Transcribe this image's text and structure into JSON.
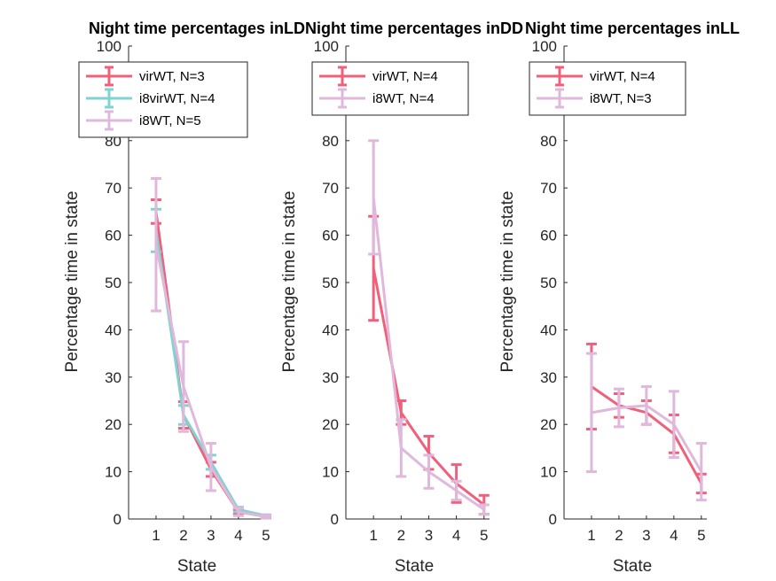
{
  "chart_data": [
    {
      "type": "line",
      "title": "Night time percentages inLD",
      "xlabel": "State",
      "ylabel": "Percentage time in state",
      "x": [
        1,
        2,
        3,
        4,
        5
      ],
      "xlim": [
        0,
        5.2
      ],
      "ylim": [
        0,
        100
      ],
      "yticks": [
        0,
        10,
        20,
        30,
        40,
        50,
        60,
        70,
        80,
        90,
        100
      ],
      "legend_position": "top",
      "series": [
        {
          "name": "virWT, N=3",
          "color": "#f0607a",
          "values": [
            65,
            22,
            10.5,
            1.5,
            0.5
          ],
          "err": [
            2.5,
            2.8,
            1.5,
            0.5,
            0.3
          ]
        },
        {
          "name": "i8virWT, N=4",
          "color": "#7fd3d1",
          "values": [
            61,
            22,
            12,
            2,
            0.7
          ],
          "err": [
            4.5,
            2,
            1.5,
            0.5,
            0.2
          ]
        },
        {
          "name": "i8WT, N=5",
          "color": "#dfb8db",
          "values": [
            58,
            28,
            11,
            1.5,
            0.5
          ],
          "err": [
            14,
            9.5,
            5,
            0.8,
            0.3
          ]
        }
      ]
    },
    {
      "type": "line",
      "title": "Night time percentages inDD",
      "xlabel": "State",
      "ylabel": "Percentage time in state",
      "x": [
        1,
        2,
        3,
        4,
        5
      ],
      "xlim": [
        0,
        5.2
      ],
      "ylim": [
        0,
        100
      ],
      "yticks": [
        0,
        10,
        20,
        30,
        40,
        50,
        60,
        70,
        80,
        90,
        100
      ],
      "legend_position": "top",
      "series": [
        {
          "name": "virWT, N=4",
          "color": "#f0607a",
          "values": [
            53,
            22.5,
            14,
            7.5,
            3
          ],
          "err": [
            11,
            2.5,
            3.5,
            4,
            2
          ]
        },
        {
          "name": "i8WT, N=4",
          "color": "#dfb8db",
          "values": [
            68,
            15,
            10,
            6,
            2
          ],
          "err": [
            12,
            6,
            3.5,
            2,
            1
          ]
        }
      ]
    },
    {
      "type": "line",
      "title": "Night time percentages inLL",
      "xlabel": "State",
      "ylabel": "Percentage time in state",
      "x": [
        1,
        2,
        3,
        4,
        5
      ],
      "xlim": [
        0,
        5.2
      ],
      "ylim": [
        0,
        100
      ],
      "yticks": [
        0,
        10,
        20,
        30,
        40,
        50,
        60,
        70,
        80,
        90,
        100
      ],
      "legend_position": "top",
      "series": [
        {
          "name": "virWT, N=4",
          "color": "#f0607a",
          "values": [
            28,
            24,
            22.5,
            18,
            7.5
          ],
          "err": [
            9,
            2.5,
            2.5,
            4,
            2
          ]
        },
        {
          "name": "i8WT, N=3",
          "color": "#dfb8db",
          "values": [
            22.5,
            23.5,
            24,
            20,
            10
          ],
          "err": [
            12.5,
            4,
            4,
            7,
            6
          ]
        }
      ]
    }
  ]
}
